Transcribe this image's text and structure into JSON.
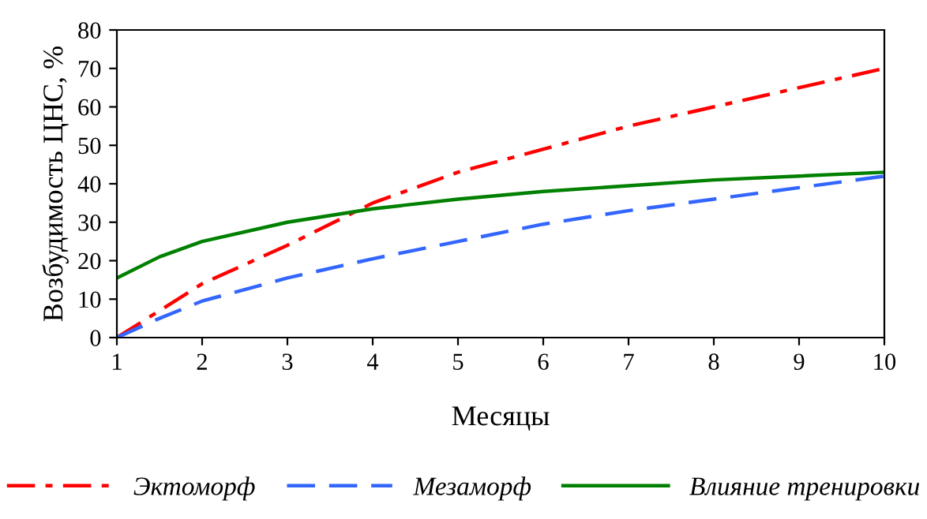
{
  "chart_data": {
    "type": "line",
    "xlabel": "Месяцы",
    "ylabel": "Возбудимость ЦНС, %",
    "x": [
      1,
      1.5,
      2,
      3,
      4,
      5,
      6,
      7,
      8,
      9,
      10
    ],
    "series": [
      {
        "name": "Эктоморф",
        "color": "#ff0000",
        "line_style": "dashdot",
        "values": [
          0,
          7,
          14,
          24,
          35,
          43,
          49,
          55,
          60,
          65,
          70
        ]
      },
      {
        "name": "Мезаморф",
        "color": "#3366ff",
        "line_style": "dashed",
        "values": [
          0,
          5,
          9.5,
          15.5,
          20.5,
          25,
          29.5,
          33,
          36,
          39,
          42
        ]
      },
      {
        "name": "Влияние тренировки",
        "color": "#008000",
        "line_style": "solid",
        "values": [
          15.5,
          21,
          25,
          30,
          33.5,
          36,
          38,
          39.5,
          41,
          42,
          43
        ]
      }
    ],
    "xlim": [
      1,
      10
    ],
    "xticks": [
      1,
      2,
      3,
      4,
      5,
      6,
      7,
      8,
      9,
      10
    ],
    "ylim": [
      0,
      80
    ],
    "yticks": [
      0,
      10,
      20,
      30,
      40,
      50,
      60,
      70,
      80
    ],
    "grid": false,
    "legend": "bottom",
    "marker": "none"
  }
}
